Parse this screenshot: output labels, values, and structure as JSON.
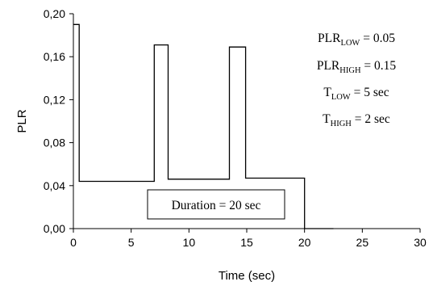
{
  "chart_data": {
    "type": "line",
    "title": "",
    "xlabel": "Time (sec)",
    "ylabel": "PLR",
    "xlim": [
      0,
      30
    ],
    "ylim": [
      0,
      0.2
    ],
    "xticks": [
      0,
      5,
      10,
      15,
      20,
      25,
      30
    ],
    "xtick_labels": [
      "0",
      "5",
      "10",
      "15",
      "20",
      "25",
      "30"
    ],
    "yticks": [
      0,
      0.04,
      0.08,
      0.12,
      0.16,
      0.2
    ],
    "ytick_labels": [
      "0,00",
      "0,04",
      "0,08",
      "0,12",
      "0,16",
      "0,20"
    ],
    "grid": false,
    "legend": "none",
    "series": [
      {
        "x": [
          0,
          0.5,
          0.5,
          7.0,
          7.0,
          8.2,
          8.2,
          13.5,
          13.5,
          14.9,
          14.9,
          20.0,
          20.0,
          22.5
        ],
        "y": [
          0.19,
          0.19,
          0.044,
          0.044,
          0.171,
          0.171,
          0.046,
          0.046,
          0.169,
          0.169,
          0.047,
          0.047,
          0.0,
          0.0
        ],
        "color": "#000000"
      }
    ],
    "annotations": {
      "params": [
        {
          "main": "PLR",
          "sub": "LOW",
          "rest": " = 0.05"
        },
        {
          "main": "PLR",
          "sub": "HIGH",
          "rest": " = 0.15"
        },
        {
          "main": "T",
          "sub": "LOW",
          "rest": " = 5 sec"
        },
        {
          "main": "T",
          "sub": "HIGH",
          "rest": " = 2 sec"
        }
      ],
      "duration": "Duration = 20 sec"
    }
  }
}
